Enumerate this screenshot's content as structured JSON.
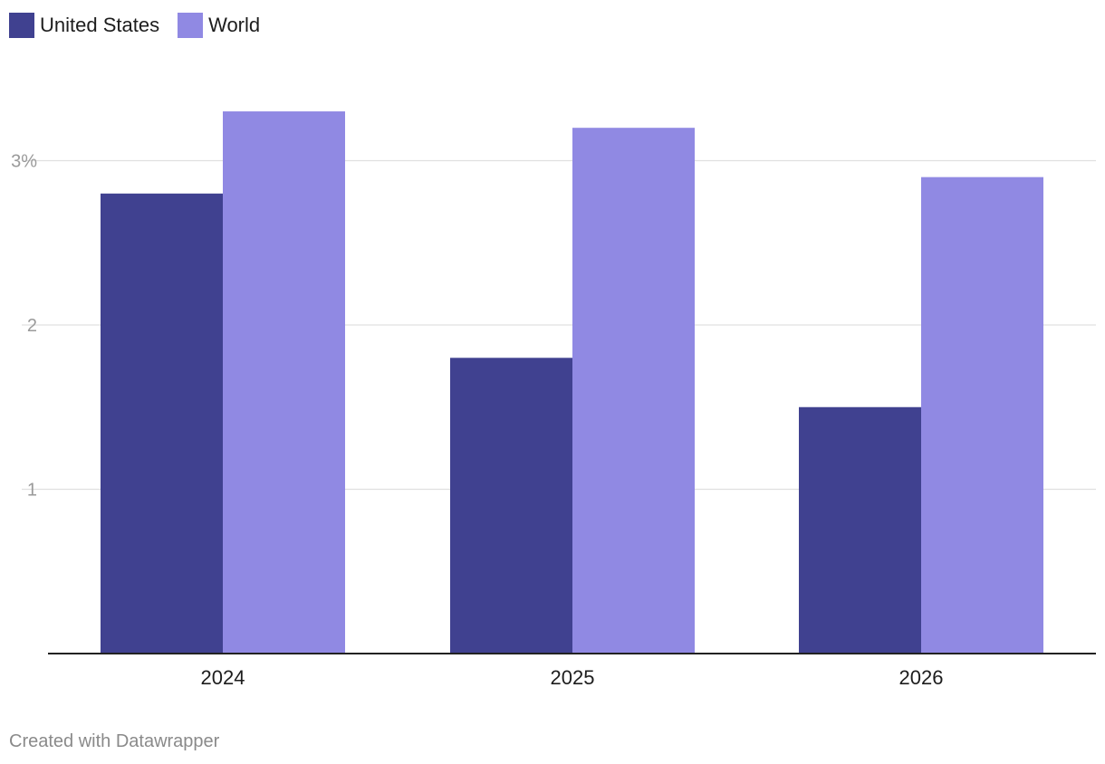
{
  "legend": [
    {
      "label": "United States",
      "color": "#404190"
    },
    {
      "label": "World",
      "color": "#9089e3"
    }
  ],
  "footer": {
    "text": "Created with Datawrapper"
  },
  "chart_data": {
    "type": "bar",
    "categories": [
      "2024",
      "2025",
      "2026"
    ],
    "series": [
      {
        "name": "United States",
        "values": [
          2.8,
          1.8,
          1.5
        ],
        "color": "#404190"
      },
      {
        "name": "World",
        "values": [
          3.3,
          3.2,
          2.9
        ],
        "color": "#9089e3"
      }
    ],
    "y_ticks": [
      {
        "value": 1,
        "label": "1"
      },
      {
        "value": 2,
        "label": "2"
      },
      {
        "value": 3,
        "label": "3%"
      }
    ],
    "ylim": [
      0,
      3.3
    ],
    "grid": true,
    "legend_position": "top-left"
  }
}
